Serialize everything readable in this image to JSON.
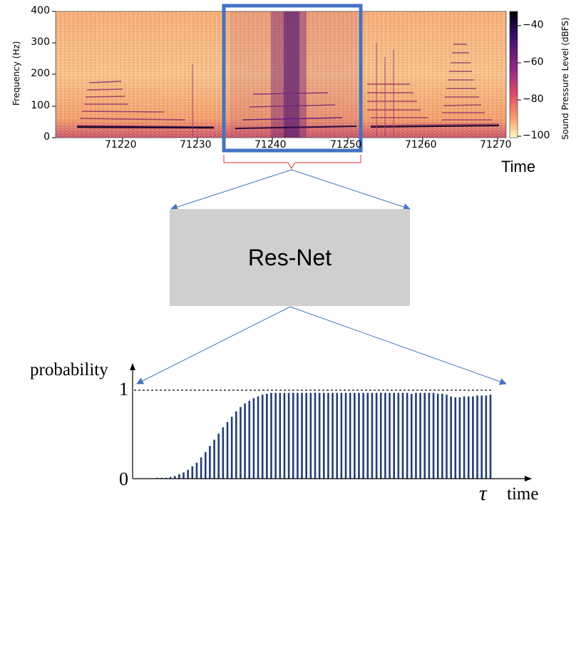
{
  "spectrogram": {
    "y_axis_label": "Frequency (Hz)",
    "y_ticks": [
      "400",
      "300",
      "200",
      "100",
      "0"
    ],
    "x_ticks": [
      "71220",
      "71230",
      "71240",
      "71250",
      "71260",
      "71270"
    ],
    "x_axis_label": "Time",
    "colorbar_label": "Sound Pressure Level (dBFS)",
    "colorbar_ticks": [
      "−40",
      "−60",
      "−80",
      "−100"
    ],
    "highlight_color": "#4472c4"
  },
  "model": {
    "label": "Res-Net"
  },
  "chart_data": {
    "type": "bar",
    "ylabel": "probability",
    "xlabel": "time",
    "x_marker": "τ",
    "y_ticks": [
      "1",
      "0"
    ],
    "ylim": [
      0,
      1
    ],
    "bar_color": "#1f3d7a",
    "values": [
      0.0,
      0.0,
      0.0,
      0.0,
      0.01,
      0.01,
      0.01,
      0.02,
      0.03,
      0.05,
      0.07,
      0.1,
      0.14,
      0.18,
      0.24,
      0.3,
      0.37,
      0.44,
      0.51,
      0.58,
      0.64,
      0.7,
      0.76,
      0.81,
      0.85,
      0.88,
      0.91,
      0.93,
      0.95,
      0.96,
      0.97,
      0.97,
      0.97,
      0.97,
      0.97,
      0.97,
      0.97,
      0.97,
      0.97,
      0.97,
      0.97,
      0.97,
      0.97,
      0.97,
      0.97,
      0.97,
      0.97,
      0.97,
      0.97,
      0.97,
      0.97,
      0.97,
      0.97,
      0.97,
      0.97,
      0.97,
      0.97,
      0.97,
      0.97,
      0.97,
      0.97,
      0.97,
      0.96,
      0.97,
      0.97,
      0.97,
      0.97,
      0.97,
      0.96,
      0.96,
      0.95,
      0.93,
      0.92,
      0.92,
      0.93,
      0.93,
      0.93,
      0.94,
      0.94,
      0.94,
      0.95
    ]
  }
}
